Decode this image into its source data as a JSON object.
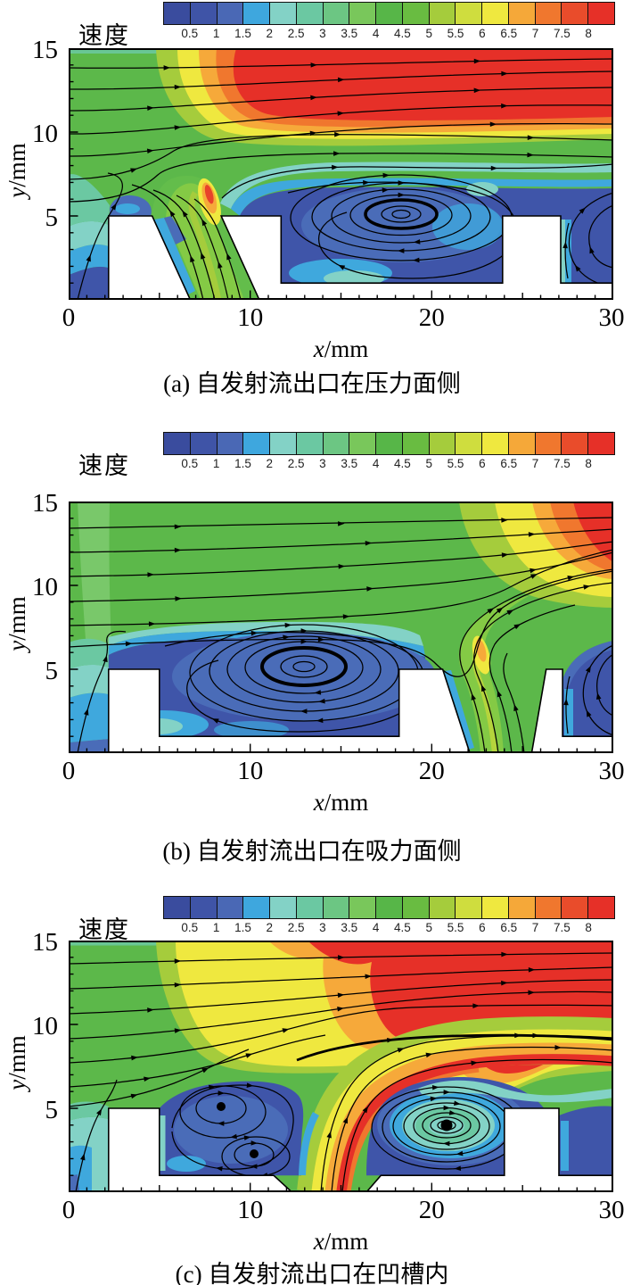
{
  "colorbar": {
    "title": "速度",
    "labels": [
      "0.5",
      "1",
      "1.5",
      "2",
      "2.5",
      "3",
      "3.5",
      "4",
      "4.5",
      "5",
      "5.5",
      "6",
      "6.5",
      "7",
      "7.5",
      "8"
    ],
    "colors": [
      "#3a4c9e",
      "#3f54a7",
      "#4a68b5",
      "#3ea7de",
      "#83d2c6",
      "#6bc8a2",
      "#6cc683",
      "#79c75b",
      "#57b648",
      "#69bc41",
      "#a5cc3c",
      "#cfdd3e",
      "#efe83f",
      "#f5a839",
      "#f0772e",
      "#e94c2b",
      "#e63028"
    ]
  },
  "axes": {
    "x_var": "x",
    "x_unit": "/mm",
    "y_var": "y",
    "y_unit": "/mm",
    "x_ticks": [
      "0",
      "10",
      "20",
      "30"
    ],
    "y_ticks": [
      "15",
      "10",
      "5"
    ]
  },
  "panels": [
    {
      "caption": "(a) 自发射流出口在压力面侧"
    },
    {
      "caption": "(b) 自发射流出口在吸力面侧"
    },
    {
      "caption": "(c) 自发射流出口在凹槽内"
    }
  ],
  "chart_data": [
    {
      "type": "heatmap",
      "title": "(a) 自发射流出口在压力面侧",
      "variable": "速度",
      "contour_levels": [
        0.5,
        1,
        1.5,
        2,
        2.5,
        3,
        3.5,
        4,
        4.5,
        5,
        5.5,
        6,
        6.5,
        7,
        7.5,
        8
      ],
      "x_range_mm": [
        0,
        30
      ],
      "y_range_mm": [
        0,
        15
      ],
      "xlabel": "x/mm",
      "ylabel": "y/mm",
      "features": {
        "jet_outlet": "pressure-face side of seal tooth, slot from (x≈4.6–6.7, y=5) to (x≈6.7–10.5, y=0)",
        "main_cavity_vortex_center_mm": {
          "x": 18.3,
          "y": 5.2
        },
        "high_speed_region": "upper channel y≈10–15, velocity ≈ 7–8",
        "cavity_velocity": "≈0.5–1.5",
        "teeth_white_blocks_mm": [
          [
            2.2,
            8.4,
            "slanted slot"
          ],
          [
            11.7,
            24,
            "groove floor y=1"
          ],
          [
            24,
            27,
            "right tooth"
          ]
        ]
      }
    },
    {
      "type": "heatmap",
      "title": "(b) 自发射流出口在吸力面侧",
      "variable": "速度",
      "contour_levels": [
        0.5,
        1,
        1.5,
        2,
        2.5,
        3,
        3.5,
        4,
        4.5,
        5,
        5.5,
        6,
        6.5,
        7,
        7.5,
        8
      ],
      "x_range_mm": [
        0,
        30
      ],
      "y_range_mm": [
        0,
        15
      ],
      "xlabel": "x/mm",
      "ylabel": "y/mm",
      "features": {
        "jet_outlet": "suction-face side of right tooth, slot from (x≈20.6–22.1, y=0) to (x≈25.5, y=0)",
        "main_cavity_vortex_center_mm": {
          "x": 13,
          "y": 5.2
        },
        "high_speed_region": "top-right corner x>26, y>10, velocity ≈ 7–8",
        "cavity_velocity": "≈0.5–1.5",
        "teeth_white_blocks_mm": [
          [
            2.2,
            5,
            "left tooth"
          ],
          [
            18.2,
            22.1,
            "right tooth with slanted slot"
          ],
          [
            25.5,
            27.2,
            "outer tooth"
          ]
        ]
      }
    },
    {
      "type": "heatmap",
      "title": "(c) 自发射流出口在凹槽内",
      "variable": "速度",
      "contour_levels": [
        0.5,
        1,
        1.5,
        2,
        2.5,
        3,
        3.5,
        4,
        4.5,
        5,
        5.5,
        6,
        6.5,
        7,
        7.5,
        8
      ],
      "x_range_mm": [
        0,
        30
      ],
      "y_range_mm": [
        0,
        15
      ],
      "xlabel": "x/mm",
      "ylabel": "y/mm",
      "features": {
        "jet_outlet": "inside groove, through floor gap x≈12.3–16.4 at y=0–1, jet velocity ≈ 7–8 (red core)",
        "vortex_centers_mm": [
          {
            "x": 8.4,
            "y": 5.1
          },
          {
            "x": 10.2,
            "y": 2.3
          },
          {
            "x": 20.8,
            "y": 4.0
          }
        ],
        "high_speed_region": "jet column bending downstream and upper channel x>13, y>8",
        "teeth_white_blocks_mm": [
          [
            2.2,
            5,
            "left tooth"
          ],
          [
            5,
            11.3,
            "floor y=1"
          ],
          [
            17.2,
            24,
            "floor y=1"
          ],
          [
            24,
            27,
            "right tooth"
          ]
        ]
      }
    }
  ]
}
